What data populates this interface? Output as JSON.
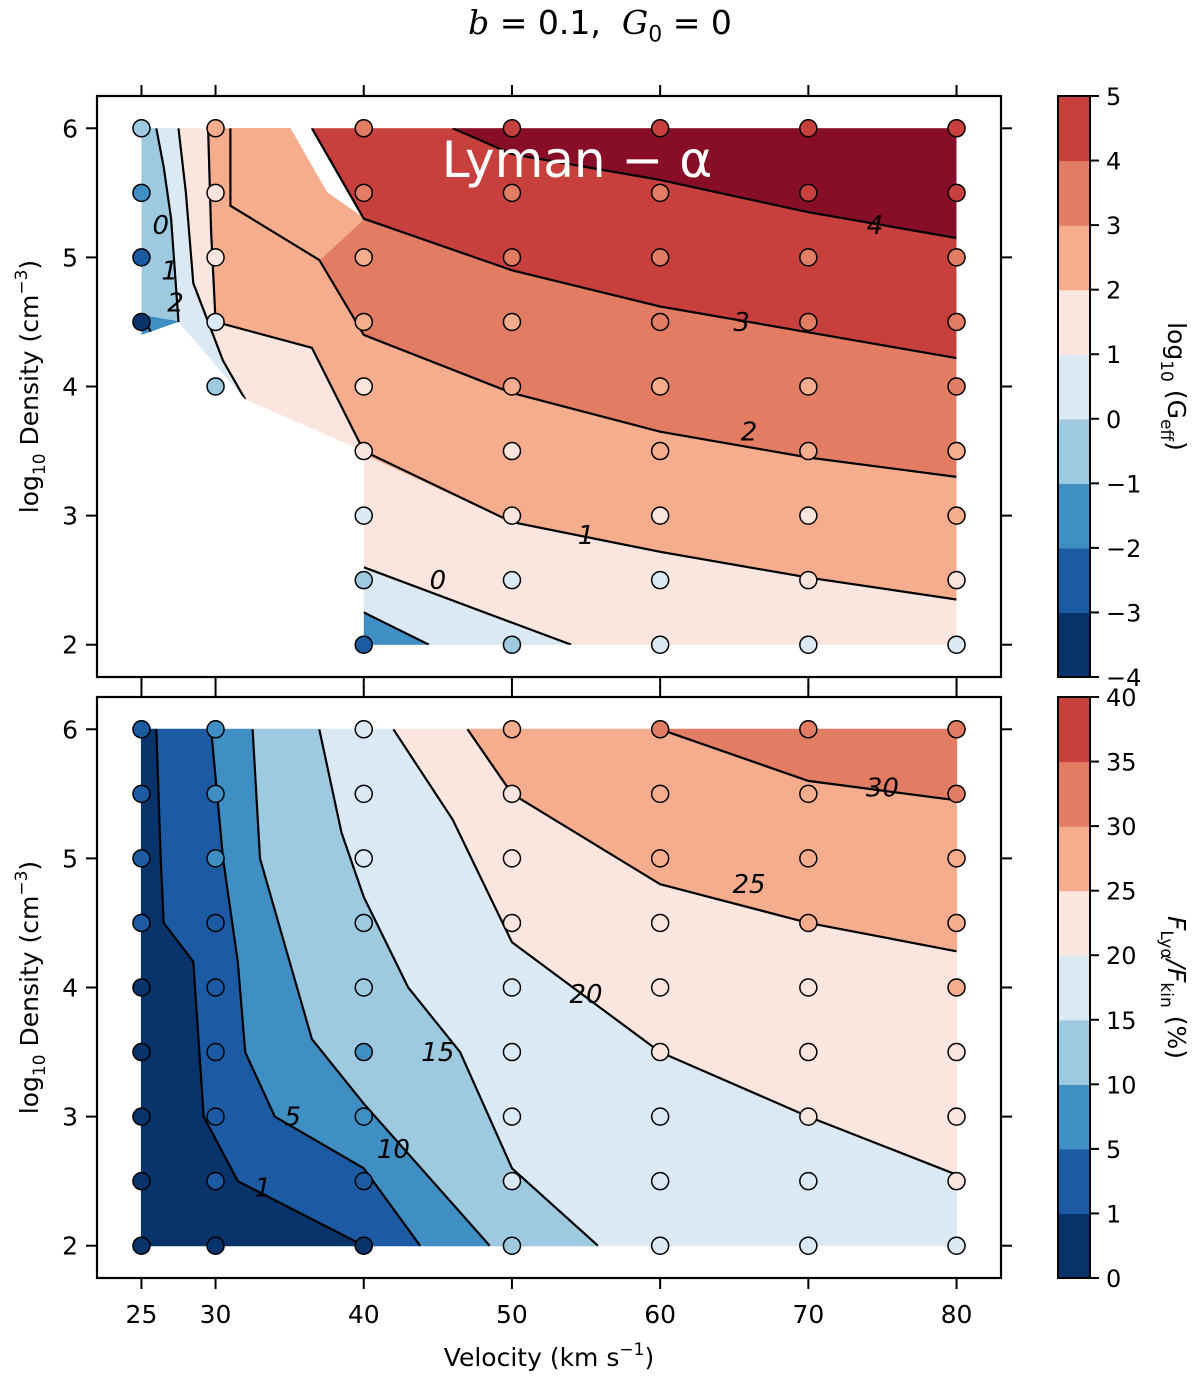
{
  "figure": {
    "title_b_label": "b",
    "title_b_value": "0.1",
    "title_g_label": "G",
    "title_g_sub": "0",
    "title_g_value": "0"
  },
  "colors": {
    "diverging": [
      "#08336b",
      "#1c5ba3",
      "#3f8ec4",
      "#9ecae1",
      "#dbe9f5",
      "#fae6de",
      "#f5ad8e",
      "#e27d64",
      "#c8403e",
      "#870e26"
    ]
  },
  "chart_data": [
    {
      "type": "heatmap",
      "panel": "top",
      "annotation": "Lyman − α",
      "xlabel": "",
      "ylabel": "log10 Density (cm−3)",
      "ylabel_parts": {
        "pre": "log",
        "sub": "10",
        "main": " Density (cm",
        "sup": "−3",
        "post": ")"
      },
      "x_ticks": [
        25,
        30,
        40,
        50,
        60,
        70,
        80
      ],
      "y_ticks": [
        2,
        3,
        4,
        5,
        6
      ],
      "xlim": [
        22,
        83
      ],
      "ylim": [
        1.75,
        6.25
      ],
      "x": [
        25,
        30,
        40,
        50,
        60,
        70,
        80
      ],
      "y": [
        2,
        2.5,
        3,
        3.5,
        4,
        4.5,
        5,
        5.5,
        6
      ],
      "values": [
        [
          null,
          null,
          -2.5,
          -0.5,
          0.3,
          0.6,
          0.9
        ],
        [
          null,
          null,
          -0.6,
          0.3,
          0.8,
          1.2,
          1.5
        ],
        [
          null,
          null,
          0.5,
          1.0,
          1.4,
          1.8,
          2.1
        ],
        [
          null,
          null,
          1.0,
          1.7,
          2.1,
          2.4,
          2.6
        ],
        [
          null,
          -0.3,
          1.6,
          2.2,
          2.6,
          2.9,
          3.1
        ],
        [
          -3.5,
          0.5,
          2.2,
          2.8,
          3.1,
          3.3,
          3.5
        ],
        [
          -3.0,
          1.0,
          2.7,
          3.2,
          3.5,
          3.7,
          3.9
        ],
        [
          -1.5,
          1.6,
          3.1,
          3.6,
          3.9,
          4.1,
          4.2
        ],
        [
          -0.5,
          2.0,
          3.4,
          4.0,
          4.2,
          4.4,
          4.6
        ]
      ],
      "levels": [
        -4,
        -3,
        -2,
        -1,
        0,
        1,
        2,
        3,
        4,
        5
      ],
      "contour_labels": [
        "4",
        "3",
        "2",
        "1",
        "0",
        "0",
        "1",
        "2"
      ],
      "colorbar": {
        "label_parts": {
          "pre": "log",
          "sub": "10",
          "main": " (G",
          "sub2": "eff",
          "post": ")"
        },
        "ticks": [
          "5",
          "4",
          "3",
          "2",
          "1",
          "0",
          "−1",
          "−2",
          "−3",
          "−4"
        ]
      }
    },
    {
      "type": "heatmap",
      "panel": "bottom",
      "xlabel": "Velocity (km s−1)",
      "xlabel_parts": {
        "main": "Velocity (km s",
        "sup": "−1",
        "post": ")"
      },
      "ylabel": "log10 Density (cm−3)",
      "ylabel_parts": {
        "pre": "log",
        "sub": "10",
        "main": " Density (cm",
        "sup": "−3",
        "post": ")"
      },
      "x_ticks": [
        25,
        30,
        40,
        50,
        60,
        70,
        80
      ],
      "x_tick_labels": [
        "25",
        "30",
        "40",
        "50",
        "60",
        "70",
        "80"
      ],
      "y_ticks": [
        2,
        3,
        4,
        5,
        6
      ],
      "xlim": [
        22,
        83
      ],
      "ylim": [
        1.75,
        6.25
      ],
      "x": [
        25,
        30,
        40,
        50,
        60,
        70,
        80
      ],
      "y": [
        2,
        2.5,
        3,
        3.5,
        4,
        4.5,
        5,
        5.5,
        6
      ],
      "values": [
        [
          0.3,
          0.5,
          0.8,
          12,
          17,
          18,
          19
        ],
        [
          0.5,
          1.2,
          3,
          16,
          18,
          19,
          21
        ],
        [
          0.6,
          1.5,
          7,
          17,
          19,
          21,
          22
        ],
        [
          0.7,
          2,
          9,
          18,
          20,
          22,
          23
        ],
        [
          0.8,
          3,
          11,
          19,
          22,
          24,
          25
        ],
        [
          1.5,
          4,
          13,
          20,
          24,
          25,
          27
        ],
        [
          2,
          6,
          15,
          22,
          25,
          27,
          28
        ],
        [
          2,
          6,
          16,
          24,
          27,
          29,
          30
        ],
        [
          3,
          8,
          18,
          26,
          30,
          33,
          32
        ]
      ],
      "levels": [
        0,
        1,
        5,
        10,
        15,
        20,
        25,
        30,
        35,
        40
      ],
      "contour_labels": [
        "1",
        "5",
        "10",
        "15",
        "20",
        "25",
        "30"
      ],
      "colorbar": {
        "label_parts": {
          "pre": "F",
          "sub": "Lyα",
          "mid": "/F",
          "sub2": "kin",
          "post": " (%)"
        },
        "ticks": [
          "40",
          "35",
          "30",
          "25",
          "20",
          "15",
          "10",
          "5",
          "1",
          "0"
        ]
      }
    }
  ]
}
